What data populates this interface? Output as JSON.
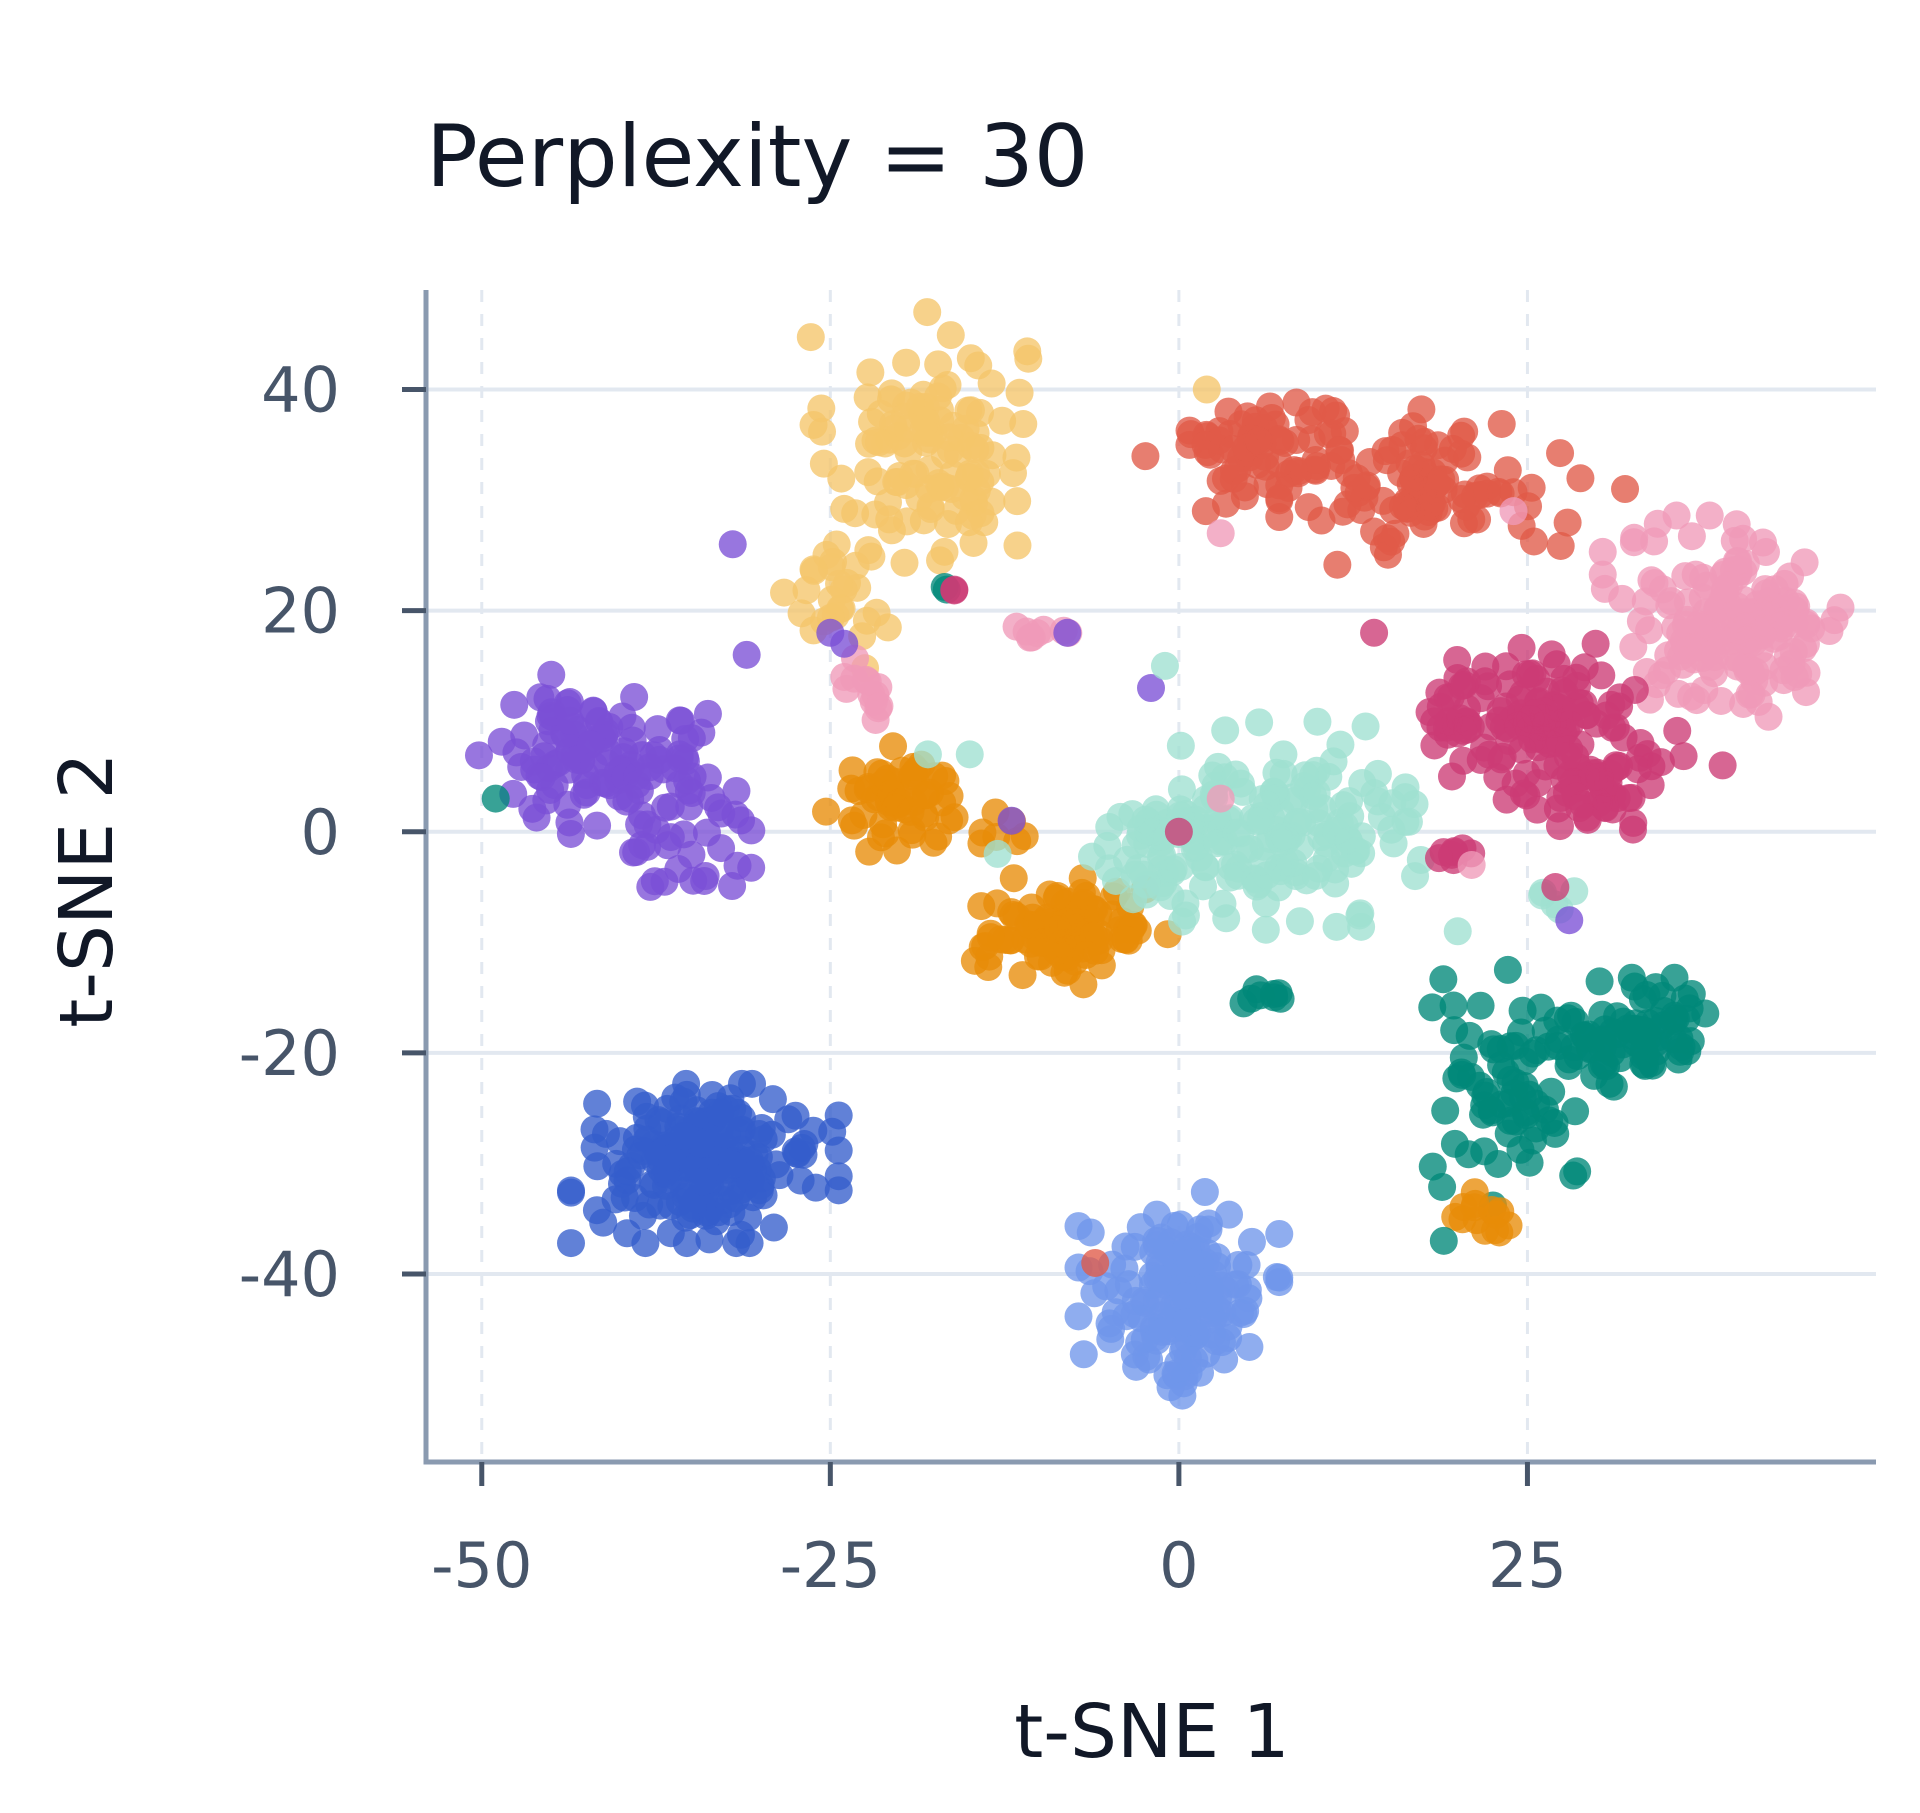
{
  "chart_data": {
    "type": "scatter",
    "title": "Perplexity = 30",
    "xlabel": "t-SNE 1",
    "ylabel": "t-SNE 2",
    "xlim": [
      -54,
      50
    ],
    "ylim": [
      -57,
      49
    ],
    "xticks": [
      -50,
      -25,
      0,
      25
    ],
    "yticks": [
      -40,
      -20,
      0,
      20,
      40
    ],
    "xtick_labels": [
      "-50",
      "-25",
      "0",
      "25"
    ],
    "ytick_labels": [
      "-40",
      "-20",
      "0",
      "20",
      "40"
    ],
    "grid": true,
    "legend": "none",
    "clusters": [
      {
        "color": "#f5c56a",
        "count": 150,
        "parts": [
          {
            "cx": -18,
            "cy": 35,
            "sx": 3.5,
            "sy": 5,
            "w": 0.8
          },
          {
            "cx": -24,
            "cy": 22,
            "sx": 1.8,
            "sy": 3,
            "w": 0.2
          }
        ]
      },
      {
        "color": "#e05a48",
        "count": 170,
        "parts": [
          {
            "cx": 6,
            "cy": 35,
            "sx": 3.5,
            "sy": 2.5,
            "w": 0.4
          },
          {
            "cx": 18,
            "cy": 31,
            "sx": 4.5,
            "sy": 3,
            "w": 0.6
          }
        ]
      },
      {
        "color": "#f09ab8",
        "count": 170,
        "parts": [
          {
            "cx": 40,
            "cy": 19,
            "sx": 4,
            "sy": 4,
            "w": 1
          }
        ]
      },
      {
        "color": "#7b4fd6",
        "count": 150,
        "parts": [
          {
            "cx": -43,
            "cy": 7,
            "sx": 3,
            "sy": 3,
            "w": 0.6
          },
          {
            "cx": -36,
            "cy": 3,
            "sx": 2.5,
            "sy": 4,
            "w": 0.4
          }
        ]
      },
      {
        "color": "#cc3b75",
        "count": 170,
        "parts": [
          {
            "cx": 25,
            "cy": 11,
            "sx": 3.5,
            "sy": 2.5,
            "w": 0.5
          },
          {
            "cx": 29,
            "cy": 6,
            "sx": 3,
            "sy": 3,
            "w": 0.5
          }
        ]
      },
      {
        "color": "#e88c08",
        "count": 170,
        "parts": [
          {
            "cx": -20,
            "cy": 3,
            "sx": 2.3,
            "sy": 2,
            "w": 0.35
          },
          {
            "cx": -8,
            "cy": -9,
            "sx": 3,
            "sy": 2,
            "w": 0.65
          }
        ]
      },
      {
        "color": "#9fe0d1",
        "count": 200,
        "parts": [
          {
            "cx": 0,
            "cy": -2,
            "sx": 3.5,
            "sy": 3,
            "w": 0.4
          },
          {
            "cx": 9,
            "cy": 1,
            "sx": 4,
            "sy": 4,
            "w": 0.6
          }
        ]
      },
      {
        "color": "#008878",
        "count": 150,
        "parts": [
          {
            "cx": 33,
            "cy": -18,
            "sx": 2.5,
            "sy": 2,
            "w": 0.5
          },
          {
            "cx": 24,
            "cy": -23,
            "sx": 3,
            "sy": 4.5,
            "w": 0.5
          }
        ]
      },
      {
        "color": "#355ecc",
        "count": 210,
        "parts": [
          {
            "cx": -34,
            "cy": -30,
            "sx": 4,
            "sy": 3,
            "w": 1
          }
        ]
      },
      {
        "color": "#7096eb",
        "count": 170,
        "parts": [
          {
            "cx": 0,
            "cy": -42,
            "sx": 3,
            "sy": 4,
            "w": 1
          }
        ]
      },
      {
        "color": "#e88c08",
        "count": 14,
        "parts": [
          {
            "cx": 22,
            "cy": -35,
            "sx": 1.3,
            "sy": 1,
            "w": 1
          }
        ]
      },
      {
        "color": "#008878",
        "count": 8,
        "parts": [
          {
            "cx": 6,
            "cy": -15,
            "sx": 1,
            "sy": 0.4,
            "w": 1
          }
        ]
      },
      {
        "color": "#cc3b75",
        "count": 10,
        "parts": [
          {
            "cx": 19,
            "cy": 10,
            "sx": 2,
            "sy": 1,
            "w": 1
          }
        ]
      },
      {
        "color": "#cc3b75",
        "count": 8,
        "parts": [
          {
            "cx": 20,
            "cy": -2,
            "sx": 1,
            "sy": 1,
            "w": 1
          }
        ]
      },
      {
        "color": "#f09ab8",
        "count": 12,
        "parts": [
          {
            "cx": -22,
            "cy": 12,
            "sx": 1,
            "sy": 2,
            "w": 1
          }
        ]
      },
      {
        "color": "#f09ab8",
        "count": 8,
        "parts": [
          {
            "cx": -10,
            "cy": 18,
            "sx": 1,
            "sy": 0.5,
            "w": 1
          }
        ]
      },
      {
        "color": "#e88c08",
        "count": 8,
        "parts": [
          {
            "cx": -14,
            "cy": 0,
            "sx": 1.5,
            "sy": 1,
            "w": 1
          }
        ]
      },
      {
        "color": "#9fe0d1",
        "count": 5,
        "parts": [
          {
            "cx": 27,
            "cy": -6,
            "sx": 0.8,
            "sy": 1,
            "w": 1
          }
        ]
      },
      {
        "color": "#008878",
        "count": 2,
        "parts": [
          {
            "cx": -17,
            "cy": 22,
            "sx": 0.3,
            "sy": 0.2,
            "w": 1
          }
        ]
      },
      {
        "color": "#cc3b75",
        "count": 2,
        "parts": [
          {
            "cx": -16,
            "cy": 22,
            "sx": 0.3,
            "sy": 0.2,
            "w": 1
          }
        ]
      }
    ],
    "points": [
      {
        "x": -32,
        "y": 26,
        "color": "#7b4fd6"
      },
      {
        "x": -31,
        "y": 16,
        "color": "#7b4fd6"
      },
      {
        "x": -25,
        "y": 18,
        "color": "#7b4fd6"
      },
      {
        "x": -24,
        "y": 17,
        "color": "#7b4fd6"
      },
      {
        "x": -8,
        "y": 18,
        "color": "#7b4fd6"
      },
      {
        "x": -2,
        "y": 13,
        "color": "#7b4fd6"
      },
      {
        "x": -12,
        "y": 1,
        "color": "#7b4fd6"
      },
      {
        "x": -1,
        "y": 15,
        "color": "#9fe0d1"
      },
      {
        "x": -18,
        "y": 7,
        "color": "#9fe0d1"
      },
      {
        "x": -15,
        "y": 7,
        "color": "#9fe0d1"
      },
      {
        "x": -13,
        "y": -2,
        "color": "#9fe0d1"
      },
      {
        "x": -49,
        "y": 3,
        "color": "#008878"
      },
      {
        "x": 20,
        "y": -9,
        "color": "#9fe0d1"
      },
      {
        "x": 0,
        "y": 0,
        "color": "#cc3b75"
      },
      {
        "x": 3,
        "y": 3,
        "color": "#f09ab8"
      },
      {
        "x": 3,
        "y": 27,
        "color": "#f09ab8"
      },
      {
        "x": 24,
        "y": 29,
        "color": "#f09ab8"
      },
      {
        "x": 2,
        "y": 40,
        "color": "#f5c56a"
      },
      {
        "x": 32,
        "y": 31,
        "color": "#e05a48"
      },
      {
        "x": 14,
        "y": 18,
        "color": "#cc3b75"
      },
      {
        "x": 39,
        "y": 6,
        "color": "#cc3b75"
      },
      {
        "x": 21,
        "y": -3,
        "color": "#f09ab8"
      },
      {
        "x": 27,
        "y": -5,
        "color": "#cc3b75"
      },
      {
        "x": 28,
        "y": -8,
        "color": "#7b4fd6"
      },
      {
        "x": -6,
        "y": -39,
        "color": "#e05a48"
      },
      {
        "x": 19,
        "y": -37,
        "color": "#008878"
      },
      {
        "x": -24,
        "y": 14,
        "color": "#f09ab8"
      }
    ]
  }
}
